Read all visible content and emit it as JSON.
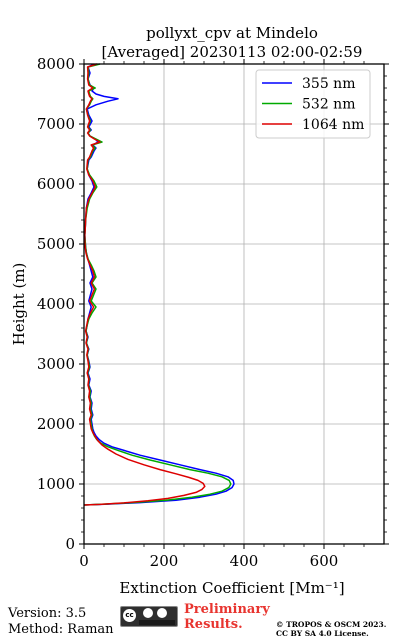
{
  "chart_data": {
    "type": "line",
    "title": "pollyxt_cpv at Mindelo",
    "subtitle": "[Averaged] 20230113 02:00-02:59",
    "xlabel": "Extinction Coefficient [Mm⁻¹]",
    "ylabel": "Height (m)",
    "xlim": [
      0,
      750
    ],
    "ylim": [
      0,
      8000
    ],
    "x_ticks": [
      0,
      200,
      400,
      600
    ],
    "y_ticks": [
      0,
      1000,
      2000,
      3000,
      4000,
      5000,
      6000,
      7000,
      8000
    ],
    "grid": true,
    "legend_position": "top-right",
    "series": [
      {
        "name": "355 nm",
        "color": "#0000ff",
        "points": [
          [
            0,
            650
          ],
          [
            60,
            665
          ],
          [
            140,
            690
          ],
          [
            230,
            730
          ],
          [
            290,
            780
          ],
          [
            330,
            830
          ],
          [
            355,
            880
          ],
          [
            370,
            940
          ],
          [
            375,
            1000
          ],
          [
            373,
            1060
          ],
          [
            360,
            1120
          ],
          [
            330,
            1180
          ],
          [
            290,
            1240
          ],
          [
            240,
            1320
          ],
          [
            190,
            1400
          ],
          [
            140,
            1480
          ],
          [
            100,
            1560
          ],
          [
            70,
            1620
          ],
          [
            50,
            1680
          ],
          [
            38,
            1740
          ],
          [
            30,
            1800
          ],
          [
            25,
            1860
          ],
          [
            22,
            1920
          ],
          [
            20,
            2000
          ],
          [
            18,
            2080
          ],
          [
            22,
            2150
          ],
          [
            18,
            2250
          ],
          [
            20,
            2350
          ],
          [
            15,
            2450
          ],
          [
            18,
            2550
          ],
          [
            12,
            2650
          ],
          [
            15,
            2750
          ],
          [
            10,
            2850
          ],
          [
            15,
            2950
          ],
          [
            12,
            3050
          ],
          [
            8,
            3150
          ],
          [
            12,
            3250
          ],
          [
            6,
            3350
          ],
          [
            10,
            3450
          ],
          [
            5,
            3550
          ],
          [
            8,
            3650
          ],
          [
            10,
            3750
          ],
          [
            14,
            3850
          ],
          [
            18,
            3950
          ],
          [
            12,
            4050
          ],
          [
            16,
            4150
          ],
          [
            20,
            4250
          ],
          [
            15,
            4350
          ],
          [
            22,
            4450
          ],
          [
            18,
            4550
          ],
          [
            14,
            4650
          ],
          [
            10,
            4750
          ],
          [
            6,
            4850
          ],
          [
            4,
            4950
          ],
          [
            3,
            5050
          ],
          [
            2,
            5150
          ],
          [
            3,
            5250
          ],
          [
            4,
            5400
          ],
          [
            6,
            5600
          ],
          [
            10,
            5750
          ],
          [
            18,
            5850
          ],
          [
            25,
            5950
          ],
          [
            20,
            6050
          ],
          [
            12,
            6150
          ],
          [
            8,
            6250
          ],
          [
            12,
            6400
          ],
          [
            18,
            6450
          ],
          [
            25,
            6550
          ],
          [
            30,
            6600
          ],
          [
            22,
            6650
          ],
          [
            35,
            6700
          ],
          [
            28,
            6750
          ],
          [
            15,
            6800
          ],
          [
            10,
            6850
          ],
          [
            18,
            6900
          ],
          [
            12,
            6950
          ],
          [
            20,
            7050
          ],
          [
            12,
            7150
          ],
          [
            8,
            7250
          ],
          [
            30,
            7320
          ],
          [
            60,
            7380
          ],
          [
            85,
            7420
          ],
          [
            50,
            7460
          ],
          [
            30,
            7500
          ],
          [
            20,
            7550
          ],
          [
            25,
            7600
          ],
          [
            15,
            7650
          ],
          [
            10,
            7750
          ],
          [
            15,
            7850
          ],
          [
            10,
            7950
          ],
          [
            25,
            8000
          ]
        ]
      },
      {
        "name": "532 nm",
        "color": "#00aa00",
        "points": [
          [
            0,
            650
          ],
          [
            50,
            665
          ],
          [
            120,
            690
          ],
          [
            205,
            730
          ],
          [
            270,
            780
          ],
          [
            315,
            830
          ],
          [
            345,
            880
          ],
          [
            362,
            940
          ],
          [
            367,
            1000
          ],
          [
            363,
            1060
          ],
          [
            345,
            1120
          ],
          [
            310,
            1180
          ],
          [
            265,
            1240
          ],
          [
            215,
            1320
          ],
          [
            165,
            1400
          ],
          [
            120,
            1480
          ],
          [
            85,
            1560
          ],
          [
            60,
            1620
          ],
          [
            42,
            1680
          ],
          [
            32,
            1740
          ],
          [
            26,
            1800
          ],
          [
            22,
            1860
          ],
          [
            20,
            1920
          ],
          [
            18,
            2000
          ],
          [
            16,
            2080
          ],
          [
            20,
            2150
          ],
          [
            16,
            2250
          ],
          [
            18,
            2350
          ],
          [
            14,
            2450
          ],
          [
            16,
            2550
          ],
          [
            11,
            2650
          ],
          [
            13,
            2750
          ],
          [
            9,
            2850
          ],
          [
            14,
            2950
          ],
          [
            11,
            3050
          ],
          [
            8,
            3150
          ],
          [
            11,
            3250
          ],
          [
            6,
            3350
          ],
          [
            9,
            3450
          ],
          [
            5,
            3550
          ],
          [
            8,
            3650
          ],
          [
            12,
            3750
          ],
          [
            20,
            3850
          ],
          [
            30,
            3950
          ],
          [
            18,
            4050
          ],
          [
            24,
            4150
          ],
          [
            30,
            4250
          ],
          [
            20,
            4350
          ],
          [
            30,
            4450
          ],
          [
            25,
            4550
          ],
          [
            18,
            4650
          ],
          [
            10,
            4750
          ],
          [
            6,
            4850
          ],
          [
            4,
            4950
          ],
          [
            3,
            5050
          ],
          [
            2,
            5150
          ],
          [
            3,
            5250
          ],
          [
            4,
            5400
          ],
          [
            8,
            5600
          ],
          [
            14,
            5750
          ],
          [
            22,
            5850
          ],
          [
            32,
            5950
          ],
          [
            25,
            6050
          ],
          [
            14,
            6150
          ],
          [
            8,
            6250
          ],
          [
            10,
            6400
          ],
          [
            16,
            6450
          ],
          [
            22,
            6550
          ],
          [
            28,
            6600
          ],
          [
            20,
            6650
          ],
          [
            45,
            6700
          ],
          [
            30,
            6750
          ],
          [
            15,
            6800
          ],
          [
            10,
            6850
          ],
          [
            16,
            6900
          ],
          [
            10,
            6950
          ],
          [
            16,
            7050
          ],
          [
            10,
            7150
          ],
          [
            6,
            7250
          ],
          [
            14,
            7320
          ],
          [
            18,
            7380
          ],
          [
            22,
            7420
          ],
          [
            16,
            7460
          ],
          [
            14,
            7500
          ],
          [
            12,
            7550
          ],
          [
            28,
            7600
          ],
          [
            14,
            7650
          ],
          [
            10,
            7750
          ],
          [
            12,
            7850
          ],
          [
            10,
            7950
          ],
          [
            40,
            8000
          ]
        ]
      },
      {
        "name": "1064 nm",
        "color": "#dd0000",
        "points": [
          [
            0,
            650
          ],
          [
            40,
            660
          ],
          [
            100,
            685
          ],
          [
            160,
            720
          ],
          [
            210,
            760
          ],
          [
            250,
            810
          ],
          [
            280,
            860
          ],
          [
            295,
            910
          ],
          [
            302,
            960
          ],
          [
            298,
            1010
          ],
          [
            285,
            1060
          ],
          [
            262,
            1110
          ],
          [
            230,
            1170
          ],
          [
            190,
            1240
          ],
          [
            150,
            1320
          ],
          [
            110,
            1410
          ],
          [
            80,
            1500
          ],
          [
            60,
            1580
          ],
          [
            45,
            1650
          ],
          [
            35,
            1720
          ],
          [
            28,
            1790
          ],
          [
            22,
            1860
          ],
          [
            18,
            1920
          ],
          [
            16,
            2000
          ],
          [
            14,
            2080
          ],
          [
            18,
            2150
          ],
          [
            14,
            2250
          ],
          [
            16,
            2350
          ],
          [
            12,
            2450
          ],
          [
            14,
            2550
          ],
          [
            10,
            2650
          ],
          [
            12,
            2750
          ],
          [
            8,
            2850
          ],
          [
            12,
            2950
          ],
          [
            10,
            3050
          ],
          [
            7,
            3150
          ],
          [
            10,
            3250
          ],
          [
            5,
            3350
          ],
          [
            8,
            3450
          ],
          [
            4,
            3550
          ],
          [
            7,
            3650
          ],
          [
            10,
            3750
          ],
          [
            16,
            3850
          ],
          [
            24,
            3950
          ],
          [
            14,
            4050
          ],
          [
            20,
            4150
          ],
          [
            26,
            4250
          ],
          [
            18,
            4350
          ],
          [
            26,
            4450
          ],
          [
            22,
            4550
          ],
          [
            15,
            4650
          ],
          [
            9,
            4750
          ],
          [
            5,
            4850
          ],
          [
            3,
            4950
          ],
          [
            2,
            5050
          ],
          [
            2,
            5150
          ],
          [
            3,
            5250
          ],
          [
            4,
            5400
          ],
          [
            6,
            5600
          ],
          [
            12,
            5750
          ],
          [
            20,
            5850
          ],
          [
            28,
            5950
          ],
          [
            22,
            6050
          ],
          [
            12,
            6150
          ],
          [
            7,
            6250
          ],
          [
            9,
            6400
          ],
          [
            14,
            6450
          ],
          [
            20,
            6550
          ],
          [
            24,
            6600
          ],
          [
            18,
            6650
          ],
          [
            40,
            6700
          ],
          [
            26,
            6750
          ],
          [
            14,
            6800
          ],
          [
            9,
            6850
          ],
          [
            14,
            6900
          ],
          [
            9,
            6950
          ],
          [
            14,
            7050
          ],
          [
            9,
            7150
          ],
          [
            6,
            7250
          ],
          [
            12,
            7320
          ],
          [
            16,
            7380
          ],
          [
            20,
            7420
          ],
          [
            14,
            7460
          ],
          [
            12,
            7500
          ],
          [
            10,
            7550
          ],
          [
            22,
            7600
          ],
          [
            12,
            7650
          ],
          [
            9,
            7750
          ],
          [
            10,
            7850
          ],
          [
            9,
            7950
          ],
          [
            32,
            8000
          ]
        ]
      }
    ]
  },
  "footer": {
    "version": "Version: 3.5",
    "method": "Method: Raman",
    "preliminary_line1": "Preliminary",
    "preliminary_line2": "Results.",
    "copyright_line1": "© TROPOS & OSCM 2023.",
    "copyright_line2": "CC BY SA 4.0 License.",
    "license_badge": "cc-by-sa-icon",
    "license_badge_text": "cc"
  }
}
